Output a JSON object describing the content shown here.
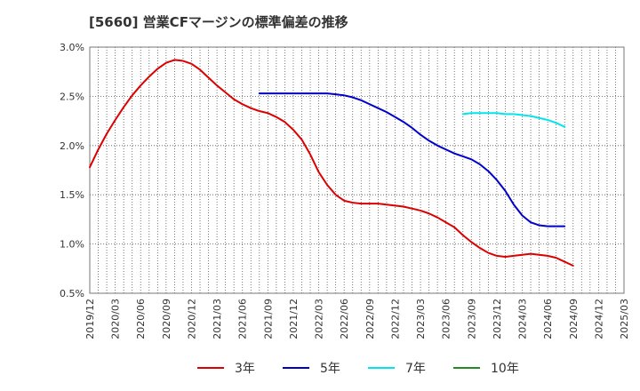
{
  "chart_data": {
    "type": "line",
    "title": "[5660]  営業CFマージンの標準偏差の推移",
    "xlabel": "",
    "ylabel": "",
    "ylim": [
      0.5,
      3.0
    ],
    "y_ticks": [
      "0.5%",
      "1.0%",
      "1.5%",
      "2.0%",
      "2.5%",
      "3.0%"
    ],
    "x_ticks": [
      "2019/12",
      "2020/03",
      "2020/06",
      "2020/09",
      "2020/12",
      "2021/03",
      "2021/06",
      "2021/09",
      "2021/12",
      "2022/03",
      "2022/06",
      "2022/09",
      "2022/12",
      "2023/03",
      "2023/06",
      "2023/09",
      "2023/12",
      "2024/03",
      "2024/06",
      "2024/09",
      "2024/12",
      "2025/03"
    ],
    "grid": true,
    "legend_position": "bottom",
    "series": [
      {
        "name": "3年",
        "color": "#dd0000",
        "values": [
          [
            "2019/12",
            1.78
          ],
          [
            "2020/01",
            1.96
          ],
          [
            "2020/02",
            2.12
          ],
          [
            "2020/03",
            2.26
          ],
          [
            "2020/04",
            2.39
          ],
          [
            "2020/05",
            2.51
          ],
          [
            "2020/06",
            2.61
          ],
          [
            "2020/07",
            2.7
          ],
          [
            "2020/08",
            2.78
          ],
          [
            "2020/09",
            2.84
          ],
          [
            "2020/10",
            2.87
          ],
          [
            "2020/11",
            2.86
          ],
          [
            "2020/12",
            2.83
          ],
          [
            "2021/01",
            2.77
          ],
          [
            "2021/02",
            2.69
          ],
          [
            "2021/03",
            2.61
          ],
          [
            "2021/04",
            2.54
          ],
          [
            "2021/05",
            2.47
          ],
          [
            "2021/06",
            2.42
          ],
          [
            "2021/07",
            2.38
          ],
          [
            "2021/08",
            2.35
          ],
          [
            "2021/09",
            2.33
          ],
          [
            "2021/10",
            2.29
          ],
          [
            "2021/11",
            2.24
          ],
          [
            "2021/12",
            2.16
          ],
          [
            "2022/01",
            2.06
          ],
          [
            "2022/02",
            1.91
          ],
          [
            "2022/03",
            1.73
          ],
          [
            "2022/04",
            1.6
          ],
          [
            "2022/05",
            1.5
          ],
          [
            "2022/06",
            1.44
          ],
          [
            "2022/07",
            1.42
          ],
          [
            "2022/08",
            1.41
          ],
          [
            "2022/09",
            1.41
          ],
          [
            "2022/10",
            1.41
          ],
          [
            "2022/11",
            1.4
          ],
          [
            "2022/12",
            1.39
          ],
          [
            "2023/01",
            1.38
          ],
          [
            "2023/02",
            1.36
          ],
          [
            "2023/03",
            1.34
          ],
          [
            "2023/04",
            1.31
          ],
          [
            "2023/05",
            1.27
          ],
          [
            "2023/06",
            1.22
          ],
          [
            "2023/07",
            1.17
          ],
          [
            "2023/08",
            1.09
          ],
          [
            "2023/09",
            1.02
          ],
          [
            "2023/10",
            0.96
          ],
          [
            "2023/11",
            0.91
          ],
          [
            "2023/12",
            0.88
          ],
          [
            "2024/01",
            0.87
          ],
          [
            "2024/02",
            0.88
          ],
          [
            "2024/03",
            0.89
          ],
          [
            "2024/04",
            0.9
          ],
          [
            "2024/05",
            0.89
          ],
          [
            "2024/06",
            0.88
          ],
          [
            "2024/07",
            0.86
          ],
          [
            "2024/08",
            0.82
          ],
          [
            "2024/09",
            0.78
          ]
        ]
      },
      {
        "name": "5年",
        "color": "#0000cc",
        "values": [
          [
            "2021/08",
            2.53
          ],
          [
            "2021/09",
            2.53
          ],
          [
            "2021/10",
            2.53
          ],
          [
            "2021/11",
            2.53
          ],
          [
            "2021/12",
            2.53
          ],
          [
            "2022/01",
            2.53
          ],
          [
            "2022/02",
            2.53
          ],
          [
            "2022/03",
            2.53
          ],
          [
            "2022/04",
            2.53
          ],
          [
            "2022/05",
            2.52
          ],
          [
            "2022/06",
            2.51
          ],
          [
            "2022/07",
            2.49
          ],
          [
            "2022/08",
            2.46
          ],
          [
            "2022/09",
            2.42
          ],
          [
            "2022/10",
            2.38
          ],
          [
            "2022/11",
            2.34
          ],
          [
            "2022/12",
            2.29
          ],
          [
            "2023/01",
            2.24
          ],
          [
            "2023/02",
            2.18
          ],
          [
            "2023/03",
            2.11
          ],
          [
            "2023/04",
            2.05
          ],
          [
            "2023/05",
            2.0
          ],
          [
            "2023/06",
            1.96
          ],
          [
            "2023/07",
            1.92
          ],
          [
            "2023/08",
            1.89
          ],
          [
            "2023/09",
            1.86
          ],
          [
            "2023/10",
            1.81
          ],
          [
            "2023/11",
            1.74
          ],
          [
            "2023/12",
            1.65
          ],
          [
            "2024/01",
            1.54
          ],
          [
            "2024/02",
            1.4
          ],
          [
            "2024/03",
            1.29
          ],
          [
            "2024/04",
            1.22
          ],
          [
            "2024/05",
            1.19
          ],
          [
            "2024/06",
            1.18
          ],
          [
            "2024/07",
            1.18
          ],
          [
            "2024/08",
            1.18
          ]
        ]
      },
      {
        "name": "7年",
        "color": "#00e5ee",
        "values": [
          [
            "2023/08",
            2.32
          ],
          [
            "2023/09",
            2.33
          ],
          [
            "2023/10",
            2.33
          ],
          [
            "2023/11",
            2.33
          ],
          [
            "2023/12",
            2.33
          ],
          [
            "2024/01",
            2.32
          ],
          [
            "2024/02",
            2.32
          ],
          [
            "2024/03",
            2.31
          ],
          [
            "2024/04",
            2.3
          ],
          [
            "2024/05",
            2.28
          ],
          [
            "2024/06",
            2.26
          ],
          [
            "2024/07",
            2.23
          ],
          [
            "2024/08",
            2.19
          ]
        ]
      },
      {
        "name": "10年",
        "color": "#228b22",
        "values": []
      }
    ]
  }
}
